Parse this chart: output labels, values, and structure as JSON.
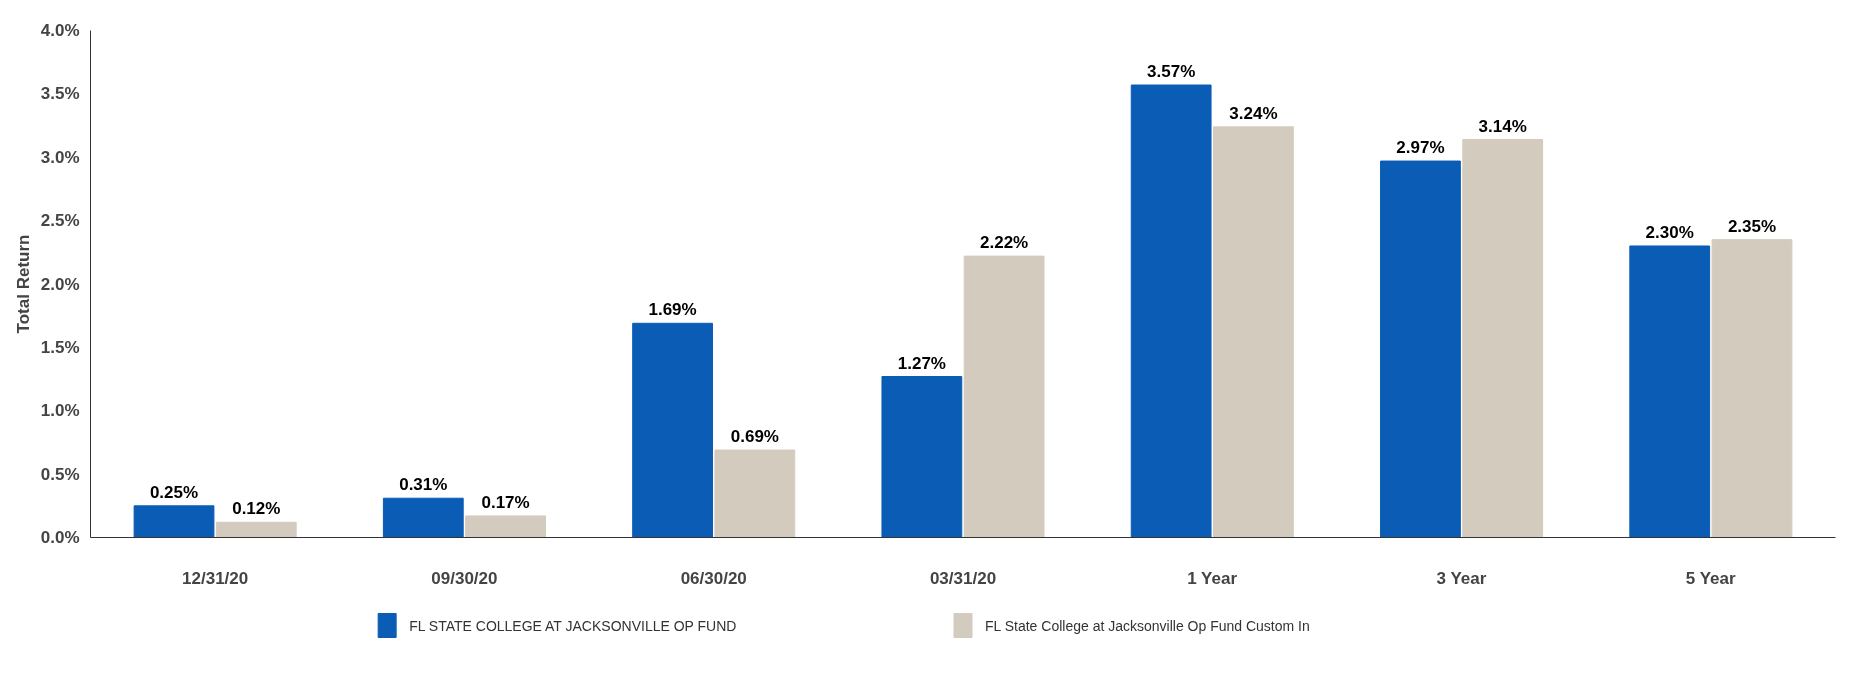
{
  "chart_data": {
    "type": "bar",
    "ylabel": "Total Return",
    "categories": [
      "12/31/20",
      "09/30/20",
      "06/30/20",
      "03/31/20",
      "1 Year",
      "3 Year",
      "5 Year"
    ],
    "series": [
      {
        "name": "FL STATE COLLEGE AT JACKSONVILLE OP FUND",
        "color": "#0b5cb5",
        "values": [
          0.25,
          0.31,
          1.69,
          1.27,
          3.57,
          2.97,
          2.3
        ],
        "value_labels": [
          "0.25%",
          "0.31%",
          "1.69%",
          "1.27%",
          "3.57%",
          "2.97%",
          "2.30%"
        ]
      },
      {
        "name": "FL State College at Jacksonville Op Fund Custom In",
        "color": "#d3cbbd",
        "values": [
          0.12,
          0.17,
          0.69,
          2.22,
          3.24,
          3.14,
          2.35
        ],
        "value_labels": [
          "0.12%",
          "0.17%",
          "0.69%",
          "2.22%",
          "3.24%",
          "3.14%",
          "2.35%"
        ]
      }
    ],
    "ylim": [
      0,
      4
    ],
    "yticks": [
      {
        "value": 0,
        "label": "0.0%"
      },
      {
        "value": 0.5,
        "label": "0.5%"
      },
      {
        "value": 1,
        "label": "1.0%"
      },
      {
        "value": 1.5,
        "label": "1.5%"
      },
      {
        "value": 2,
        "label": "2.0%"
      },
      {
        "value": 2.5,
        "label": "2.5%"
      },
      {
        "value": 3,
        "label": "3.0%"
      },
      {
        "value": 3.5,
        "label": "3.5%"
      },
      {
        "value": 4,
        "label": "4.0%"
      }
    ],
    "grid": false,
    "legend": "bottom"
  }
}
